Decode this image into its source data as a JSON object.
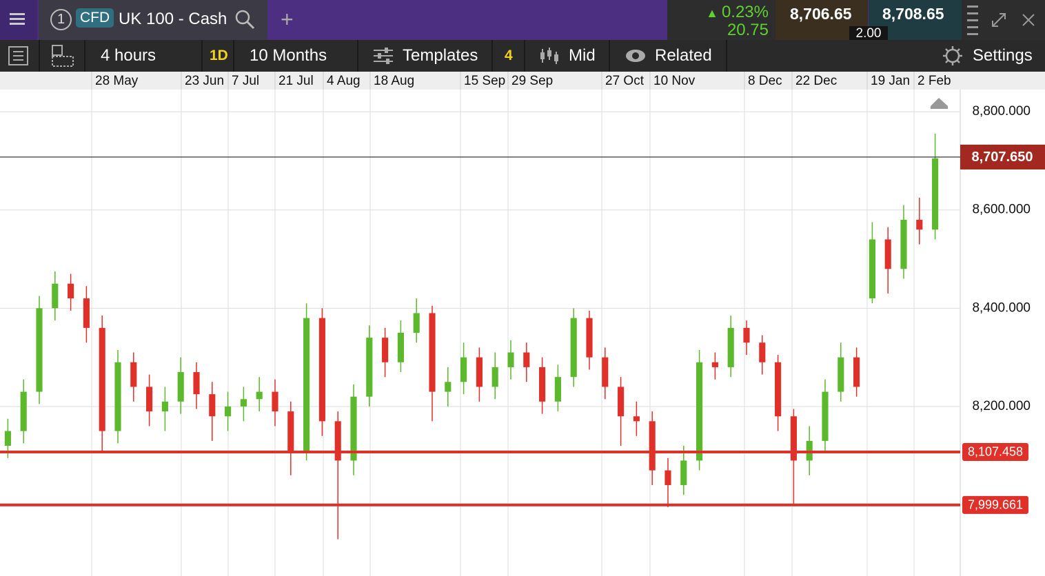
{
  "header": {
    "tab_number": "1",
    "badge": "CFD",
    "title": "UK 100 - Cash",
    "change_pct": "0.23%",
    "change_pts": "20.75",
    "bid": "8,706.65",
    "ask": "8,708.65",
    "spread": "2.00"
  },
  "toolbar": {
    "interval": "4 hours",
    "range_short": "1D",
    "range": "10 Months",
    "templates": "Templates",
    "templates_count": "4",
    "price_type": "Mid",
    "related": "Related",
    "settings": "Settings"
  },
  "chart_data": {
    "type": "candlestick",
    "date_labels": [
      "28 May",
      "23 Jun",
      "7 Jul",
      "21 Jul",
      "4 Aug",
      "18 Aug",
      "15 Sep",
      "29 Sep",
      "27 Oct",
      "10 Nov",
      "8 Dec",
      "22 Dec",
      "19 Jan",
      "2 Feb"
    ],
    "open": [
      8120,
      8150,
      8230,
      8400,
      8450,
      8420,
      8360,
      8150,
      8290,
      8240,
      8190,
      8210,
      8270,
      8225,
      8180,
      8200,
      8215,
      8230,
      8190,
      8110,
      8380,
      8170,
      8090,
      8220,
      8340,
      8290,
      8350,
      8390,
      8230,
      8250,
      8300,
      8240,
      8280,
      8310,
      8280,
      8210,
      8260,
      8380,
      8300,
      8240,
      8180,
      8170,
      8070,
      8040,
      8090,
      8290,
      8280,
      8360,
      8330,
      8290,
      8180,
      8090,
      8130,
      8230,
      8300,
      8420,
      8540,
      8480,
      8580,
      8560
    ],
    "high": [
      8175,
      8255,
      8425,
      8475,
      8470,
      8445,
      8385,
      8315,
      8310,
      8265,
      8240,
      8300,
      8290,
      8250,
      8230,
      8240,
      8260,
      8255,
      8210,
      8410,
      8400,
      8190,
      8245,
      8365,
      8360,
      8375,
      8420,
      8405,
      8280,
      8330,
      8320,
      8310,
      8335,
      8330,
      8300,
      8285,
      8400,
      8395,
      8320,
      8260,
      8210,
      8190,
      8095,
      8120,
      8315,
      8310,
      8385,
      8375,
      8345,
      8305,
      8195,
      8160,
      8255,
      8330,
      8320,
      8575,
      8565,
      8610,
      8625,
      8755
    ],
    "low": [
      8095,
      8125,
      8205,
      8375,
      8395,
      8330,
      8110,
      8125,
      8210,
      8160,
      8150,
      8185,
      8195,
      8130,
      8150,
      8170,
      8190,
      8160,
      8060,
      8090,
      8140,
      7930,
      8060,
      8200,
      8260,
      8270,
      8330,
      8170,
      8200,
      8225,
      8210,
      8215,
      8255,
      8250,
      8185,
      8190,
      8240,
      8275,
      8215,
      8120,
      8140,
      8040,
      7995,
      8020,
      8070,
      8255,
      8260,
      8305,
      8265,
      8150,
      8000,
      8060,
      8110,
      8210,
      8220,
      8410,
      8430,
      8460,
      8530,
      8540
    ],
    "close": [
      8150,
      8230,
      8400,
      8450,
      8420,
      8360,
      8150,
      8290,
      8240,
      8190,
      8210,
      8270,
      8225,
      8180,
      8200,
      8215,
      8230,
      8190,
      8110,
      8380,
      8170,
      8090,
      8220,
      8340,
      8290,
      8350,
      8390,
      8230,
      8250,
      8300,
      8240,
      8280,
      8310,
      8280,
      8210,
      8260,
      8380,
      8300,
      8240,
      8180,
      8170,
      8070,
      8040,
      8090,
      8290,
      8280,
      8360,
      8330,
      8290,
      8180,
      8090,
      8130,
      8230,
      8300,
      8240,
      8540,
      8480,
      8580,
      8560,
      8705
    ],
    "up_color": "#5cb82c",
    "down_color": "#e0302a",
    "ylim": [
      7855,
      8845
    ],
    "yticks": [
      {
        "value": 8200,
        "label": "8,200.000"
      },
      {
        "value": 8400,
        "label": "8,400.000"
      },
      {
        "value": 8600,
        "label": "8,600.000"
      },
      {
        "value": 8800,
        "label": "8,800.000"
      }
    ],
    "grid": true,
    "price_line": {
      "value": 8707.65,
      "label": "8,707.650",
      "color": "#222222",
      "label_color": "#a3281f"
    },
    "levels": [
      {
        "value": 8107.458,
        "label": "8,107.458",
        "color": "#e0302a"
      },
      {
        "value": 7999.661,
        "label": "7,999.661",
        "color": "#e0302a"
      }
    ]
  }
}
